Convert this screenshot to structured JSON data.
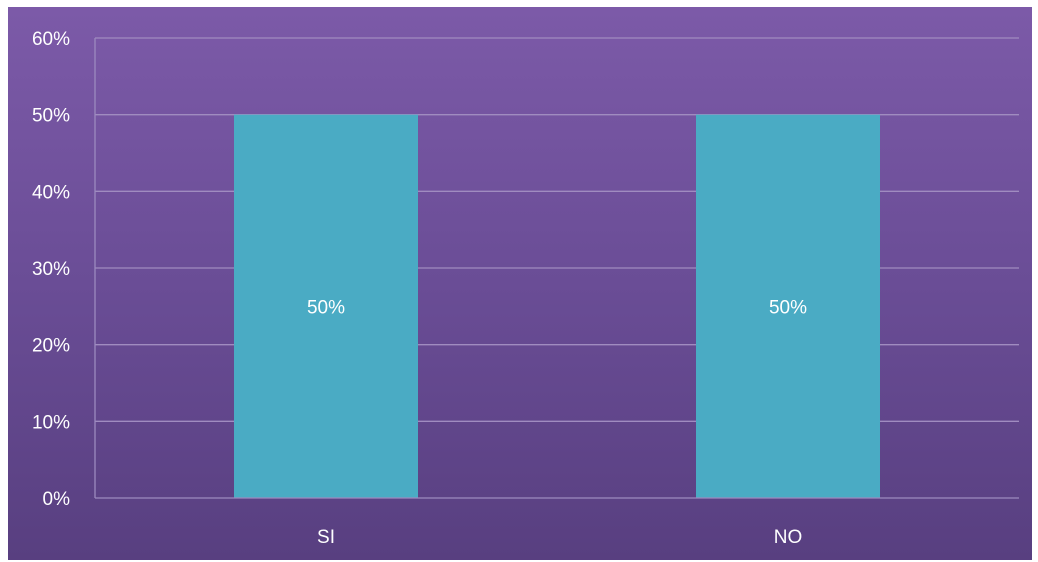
{
  "chart_data": {
    "type": "bar",
    "categories": [
      "SI",
      "NO"
    ],
    "values": [
      50,
      50
    ],
    "data_labels": [
      "50%",
      "50%"
    ],
    "yticks": [
      "0%",
      "10%",
      "20%",
      "30%",
      "40%",
      "50%",
      "60%"
    ],
    "ylim": [
      0,
      60
    ],
    "grid": true,
    "legend": "none",
    "colors": {
      "bar": "#4aabc4",
      "gridline": "#a08cc0",
      "axis": "#9c8abf",
      "text": "#ffffff",
      "background_top": "#7c5aa8",
      "background_bottom": "#583f80"
    }
  }
}
